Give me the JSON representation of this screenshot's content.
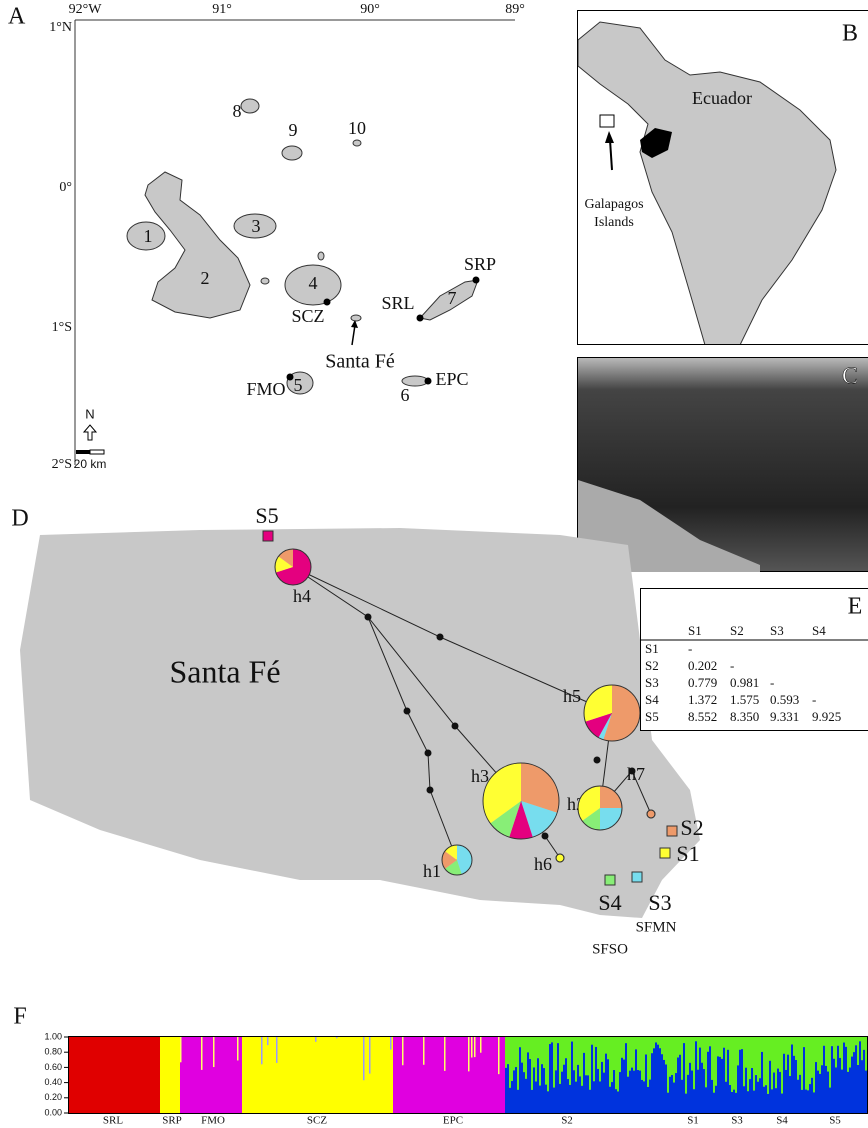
{
  "panel_labels": [
    "A",
    "B",
    "C",
    "D",
    "E",
    "F"
  ],
  "map_a": {
    "longitudes": [
      "92°W",
      "91°",
      "90°",
      "89°"
    ],
    "latitudes": [
      "1°N",
      "0°",
      "1°S",
      "2°S"
    ],
    "islands": [
      "1",
      "2",
      "3",
      "4",
      "5",
      "6",
      "7",
      "8",
      "9",
      "10"
    ],
    "sites": [
      "SRP",
      "SRL",
      "SCZ",
      "FMO",
      "EPC"
    ],
    "target": "Santa Fé",
    "compass": "N",
    "scale": "20 km"
  },
  "map_b": {
    "country": "Ecuador",
    "inset_label": [
      "Galapagos",
      "Islands"
    ]
  },
  "map_d": {
    "island": "Santa Fé",
    "haplotypes": [
      "h1",
      "h2",
      "h3",
      "h4",
      "h5",
      "h6",
      "h7"
    ],
    "sites": [
      "S1",
      "S2",
      "S3",
      "S4",
      "S5"
    ],
    "site_names": [
      "SFMN",
      "SFSO"
    ]
  },
  "table_e": {
    "header": [
      "S1",
      "S2",
      "S3",
      "S4"
    ],
    "rows": [
      [
        "S1",
        "-"
      ],
      [
        "S2",
        "0.202",
        "-"
      ],
      [
        "S3",
        "0.779",
        "0.981",
        "-"
      ],
      [
        "S4",
        "1.372",
        "1.575",
        "0.593",
        "-"
      ],
      [
        "S5",
        "8.552",
        "8.350",
        "9.331",
        "9.925"
      ]
    ]
  },
  "plot_f": {
    "yticks": [
      "1.00",
      "0.80",
      "0.60",
      "0.40",
      "0.20",
      "0.00"
    ],
    "groups": [
      "SRL",
      "SRP",
      "FMO",
      "SCZ",
      "EPC",
      "S2",
      "S1",
      "S3",
      "S4",
      "S5"
    ]
  }
}
